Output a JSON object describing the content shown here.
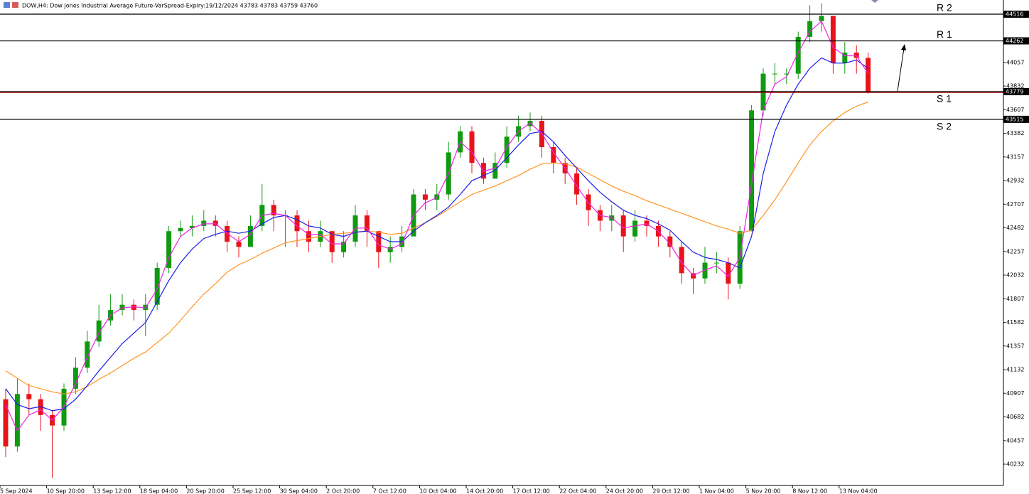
{
  "chart_data": {
    "type": "candlestick",
    "title": "DOW,H4: Dow Jones Industrial Average Future-VarSpread-Expiry:19/12/2024 43783 43783 43759 43760",
    "categories": [
      "5 Sep 2024",
      null,
      null,
      null,
      "10 Sep 20:00",
      null,
      null,
      null,
      "13 Sep 12:00",
      null,
      null,
      null,
      "18 Sep 04:00",
      null,
      null,
      null,
      "20 Sep 20:00",
      null,
      null,
      null,
      "25 Sep 12:00",
      null,
      null,
      null,
      "30 Sep 04:00",
      null,
      null,
      null,
      "2 Oct 20:00",
      null,
      null,
      null,
      "7 Oct 12:00",
      null,
      null,
      null,
      "10 Oct 04:00",
      null,
      null,
      null,
      "14 Oct 20:00",
      null,
      null,
      null,
      "17 Oct 12:00",
      null,
      null,
      null,
      "22 Oct 04:00",
      null,
      null,
      null,
      "24 Oct 20:00",
      null,
      null,
      null,
      "29 Oct 12:00",
      null,
      null,
      null,
      "1 Nov 04:00",
      null,
      null,
      null,
      "5 Nov 20:00",
      null,
      null,
      null,
      "8 Nov 12:00",
      null,
      null,
      null,
      "13 Nov 04:00",
      null,
      null
    ],
    "open": [
      40850,
      40400,
      40900,
      40850,
      40700,
      40600,
      40950,
      41150,
      41400,
      41600,
      41700,
      41750,
      41700,
      41750,
      42100,
      42450,
      42480,
      42500,
      42550,
      42500,
      42350,
      42300,
      42500,
      42700,
      42600,
      42600,
      42450,
      42350,
      42450,
      42250,
      42350,
      42600,
      42450,
      42250,
      42300,
      42400,
      42800,
      42750,
      42800,
      43200,
      43400,
      43100,
      42950,
      43100,
      43350,
      43450,
      43500,
      43250,
      43100,
      43000,
      42800,
      42650,
      42550,
      42600,
      42400,
      42550,
      42500,
      42400,
      42300,
      42050,
      42000,
      42150,
      42150,
      41950,
      42450,
      43600,
      43950,
      43950,
      43950,
      44300,
      44450,
      44500,
      44050,
      44150,
      44100
    ],
    "high": [
      40950,
      41050,
      41000,
      40900,
      40750,
      41000,
      41250,
      41500,
      41750,
      41850,
      41850,
      41800,
      41850,
      42150,
      42500,
      42550,
      42600,
      42650,
      42600,
      42550,
      42400,
      42600,
      42900,
      42750,
      42650,
      42650,
      42550,
      42550,
      42450,
      42450,
      42700,
      42650,
      42450,
      42400,
      42500,
      42850,
      42850,
      42900,
      43300,
      43450,
      43450,
      43150,
      43200,
      43450,
      43550,
      43580,
      43550,
      43300,
      43150,
      43050,
      42850,
      42700,
      42700,
      42650,
      42650,
      42600,
      42550,
      42450,
      42350,
      42100,
      42300,
      42250,
      42200,
      42500,
      43650,
      44000,
      44050,
      44000,
      44350,
      44600,
      44620,
      44500,
      44250,
      44220,
      44150
    ],
    "low": [
      40300,
      40350,
      40700,
      40550,
      40100,
      40550,
      40900,
      41100,
      41350,
      41550,
      41650,
      41600,
      41450,
      41700,
      42050,
      42400,
      42400,
      42450,
      42400,
      42250,
      42200,
      42300,
      42450,
      42450,
      42300,
      42300,
      42250,
      42300,
      42150,
      42200,
      42300,
      42300,
      42100,
      42150,
      42250,
      42400,
      42650,
      42650,
      42750,
      43150,
      43000,
      42900,
      42950,
      43050,
      43300,
      43400,
      43150,
      43000,
      42900,
      42700,
      42500,
      42450,
      42450,
      42250,
      42350,
      42400,
      42300,
      42200,
      41950,
      41850,
      41950,
      42050,
      41800,
      41900,
      42450,
      43550,
      43850,
      43850,
      43900,
      44250,
      44350,
      43950,
      43950,
      43950,
      43760
    ],
    "close": [
      40400,
      40900,
      40850,
      40700,
      40600,
      40950,
      41150,
      41400,
      41600,
      41700,
      41750,
      41700,
      41750,
      42100,
      42450,
      42480,
      42500,
      42550,
      42500,
      42350,
      42300,
      42500,
      42700,
      42600,
      42600,
      42450,
      42350,
      42450,
      42250,
      42350,
      42600,
      42450,
      42250,
      42300,
      42400,
      42800,
      42750,
      42800,
      43200,
      43400,
      43100,
      42950,
      43100,
      43350,
      43450,
      43500,
      43250,
      43100,
      43000,
      42800,
      42650,
      42550,
      42600,
      42400,
      42550,
      42500,
      42400,
      42300,
      42050,
      42000,
      42150,
      42150,
      41950,
      42450,
      43600,
      43950,
      43950,
      43950,
      44300,
      44450,
      44500,
      44050,
      44150,
      44100,
      43779
    ],
    "up_color": "#109a10",
    "down_color": "#e8141a",
    "series": [
      {
        "color": "#ff9422",
        "values": [
          41120,
          41050,
          40980,
          40950,
          40920,
          40900,
          40920,
          40970,
          41040,
          41100,
          41170,
          41240,
          41300,
          41390,
          41480,
          41600,
          41730,
          41850,
          41950,
          42060,
          42130,
          42180,
          42240,
          42290,
          42340,
          42360,
          42380,
          42400,
          42420,
          42430,
          42440,
          42450,
          42440,
          42420,
          42430,
          42480,
          42530,
          42590,
          42660,
          42730,
          42800,
          42840,
          42880,
          42930,
          42980,
          43040,
          43090,
          43100,
          43090,
          43060,
          43000,
          42940,
          42880,
          42830,
          42790,
          42740,
          42700,
          42660,
          42620,
          42580,
          42540,
          42500,
          42470,
          42430,
          42460,
          42600,
          42750,
          42920,
          43100,
          43270,
          43400,
          43500,
          43580,
          43640,
          43680
        ]
      },
      {
        "color": "#1c1ce8",
        "values": [
          40950,
          40800,
          40760,
          40780,
          40740,
          40760,
          40850,
          40980,
          41120,
          41250,
          41380,
          41480,
          41580,
          41780,
          41980,
          42150,
          42280,
          42380,
          42420,
          42450,
          42430,
          42450,
          42520,
          42580,
          42600,
          42560,
          42500,
          42480,
          42420,
          42400,
          42440,
          42450,
          42400,
          42350,
          42350,
          42450,
          42530,
          42600,
          42680,
          42800,
          42930,
          42980,
          43030,
          43150,
          43270,
          43380,
          43400,
          43300,
          43170,
          43050,
          42930,
          42820,
          42730,
          42650,
          42600,
          42570,
          42520,
          42460,
          42350,
          42250,
          42200,
          42180,
          42150,
          42100,
          42400,
          43000,
          43400,
          43650,
          43850,
          44000,
          44100,
          44050,
          44050,
          44080,
          44000
        ]
      },
      {
        "color": "#f020e8",
        "values": [
          40800,
          40550,
          40700,
          40750,
          40650,
          40780,
          41000,
          41250,
          41480,
          41650,
          41720,
          41730,
          41720,
          41900,
          42200,
          42400,
          42480,
          42520,
          42520,
          42430,
          42350,
          42420,
          42600,
          42620,
          42600,
          42500,
          42420,
          42420,
          42330,
          42330,
          42480,
          42480,
          42320,
          42280,
          42330,
          42600,
          42720,
          42770,
          43000,
          43300,
          43200,
          43020,
          43050,
          43250,
          43400,
          43480,
          43380,
          43200,
          43050,
          42880,
          42720,
          42600,
          42580,
          42480,
          42500,
          42520,
          42450,
          42330,
          42150,
          42030,
          42080,
          42120,
          42020,
          42200,
          42900,
          43600,
          43850,
          43920,
          44150,
          44350,
          44450,
          44200,
          44120,
          44120,
          43950
        ]
      }
    ],
    "levels": [
      {
        "label": "R 2",
        "value": 44516
      },
      {
        "label": "R 1",
        "value": 44262
      },
      {
        "label": "S 1",
        "value": 43779
      },
      {
        "label": "S 2",
        "value": 43515
      }
    ],
    "ylim": [
      40029,
      44651
    ],
    "yticks": [
      44057,
      43832,
      43607,
      43382,
      43157,
      42932,
      42707,
      42482,
      42257,
      42032,
      41807,
      41582,
      41357,
      41132,
      40907,
      40682,
      40457,
      40232
    ]
  }
}
